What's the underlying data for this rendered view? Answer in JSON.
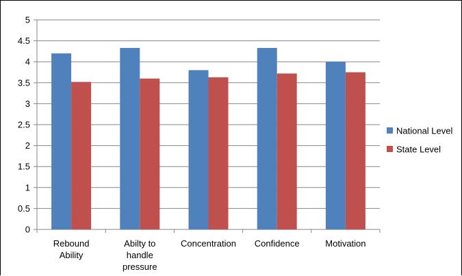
{
  "chart_data": {
    "type": "bar",
    "categories": [
      [
        "Rebound",
        "Ability"
      ],
      [
        "Abilty to",
        "handle",
        "pressure"
      ],
      [
        "Concentration"
      ],
      [
        "Confidence"
      ],
      [
        "Motivation"
      ]
    ],
    "series": [
      {
        "name": "National Level",
        "color": "#4F81BD",
        "values": [
          4.2,
          4.33,
          3.8,
          4.33,
          4.0
        ]
      },
      {
        "name": "State Level",
        "color": "#C0504D",
        "values": [
          3.52,
          3.6,
          3.63,
          3.72,
          3.75
        ]
      }
    ],
    "title": "",
    "xlabel": "",
    "ylabel": "",
    "ylim": [
      0,
      5
    ],
    "yticks": [
      "0",
      "0.5",
      "1",
      "1.5",
      "2",
      "2.5",
      "3",
      "3.5",
      "4",
      "4.5",
      "5"
    ],
    "grid": true,
    "legend_position": "right"
  }
}
